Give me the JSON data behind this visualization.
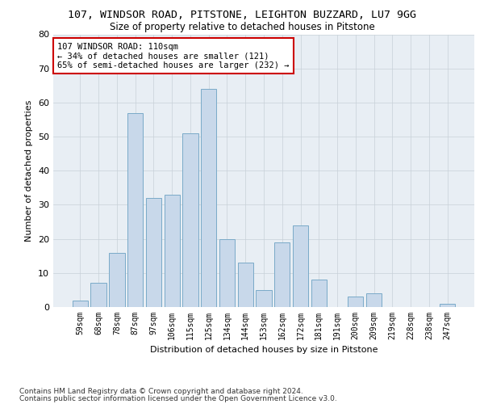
{
  "title1": "107, WINDSOR ROAD, PITSTONE, LEIGHTON BUZZARD, LU7 9GG",
  "title2": "Size of property relative to detached houses in Pitstone",
  "xlabel": "Distribution of detached houses by size in Pitstone",
  "ylabel": "Number of detached properties",
  "categories": [
    "59sqm",
    "68sqm",
    "78sqm",
    "87sqm",
    "97sqm",
    "106sqm",
    "115sqm",
    "125sqm",
    "134sqm",
    "144sqm",
    "153sqm",
    "162sqm",
    "172sqm",
    "181sqm",
    "191sqm",
    "200sqm",
    "209sqm",
    "219sqm",
    "228sqm",
    "238sqm",
    "247sqm"
  ],
  "values": [
    2,
    7,
    16,
    57,
    32,
    33,
    51,
    64,
    20,
    13,
    5,
    19,
    24,
    8,
    0,
    3,
    4,
    0,
    0,
    0,
    1
  ],
  "bar_color": "#c8d8ea",
  "bar_edge_color": "#7aaac8",
  "annotation_lines": [
    "107 WINDSOR ROAD: 110sqm",
    "← 34% of detached houses are smaller (121)",
    "65% of semi-detached houses are larger (232) →"
  ],
  "annotation_box_color": "white",
  "annotation_box_edge_color": "#cc0000",
  "ylim": [
    0,
    80
  ],
  "yticks": [
    0,
    10,
    20,
    30,
    40,
    50,
    60,
    70,
    80
  ],
  "grid_color": "#c8d0d8",
  "background_color": "#e8eef4",
  "footer1": "Contains HM Land Registry data © Crown copyright and database right 2024.",
  "footer2": "Contains public sector information licensed under the Open Government Licence v3.0.",
  "title1_fontsize": 9.5,
  "title2_fontsize": 8.5,
  "xlabel_fontsize": 8,
  "ylabel_fontsize": 8,
  "ytick_fontsize": 8,
  "xtick_fontsize": 7,
  "footer_fontsize": 6.5,
  "ann_fontsize": 7.5
}
